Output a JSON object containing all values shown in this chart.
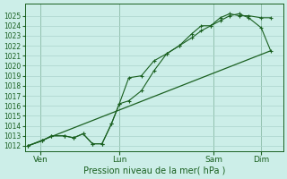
{
  "background_color": "#cceee8",
  "grid_color": "#aad4cc",
  "line_color": "#1a6020",
  "title": "Pression niveau de la mer( hPa )",
  "ylim": [
    1011.5,
    1026.2
  ],
  "yticks": [
    1012,
    1013,
    1014,
    1015,
    1016,
    1017,
    1018,
    1019,
    1020,
    1021,
    1022,
    1023,
    1024,
    1025
  ],
  "xtick_labels": [
    "Ven",
    "Lun",
    "Sam",
    "Dim"
  ],
  "xtick_positions": [
    0.5,
    3.0,
    6.0,
    7.5
  ],
  "xlim": [
    0.0,
    8.2
  ],
  "line1_x": [
    0.1,
    0.55,
    0.85,
    1.25,
    1.55,
    1.85,
    2.15,
    2.45,
    2.75,
    3.0,
    3.3,
    3.7,
    4.1,
    4.5,
    4.9,
    5.3,
    5.6,
    5.9,
    6.2,
    6.5,
    6.8,
    7.1,
    7.5,
    7.8
  ],
  "line1_y": [
    1012.0,
    1012.5,
    1013.0,
    1013.0,
    1012.8,
    1013.2,
    1012.2,
    1012.2,
    1014.2,
    1016.2,
    1018.8,
    1019.0,
    1020.5,
    1021.2,
    1022.0,
    1023.2,
    1024.0,
    1024.0,
    1024.8,
    1025.2,
    1025.0,
    1025.0,
    1024.8,
    1024.8
  ],
  "line2_x": [
    0.1,
    0.55,
    0.85,
    1.25,
    1.55,
    1.85,
    2.15,
    2.45,
    2.75,
    3.0,
    3.3,
    3.7,
    4.1,
    4.5,
    4.9,
    5.3,
    5.6,
    5.9,
    6.2,
    6.5,
    6.8,
    7.1,
    7.5,
    7.8
  ],
  "line2_y": [
    1012.0,
    1012.5,
    1013.0,
    1013.0,
    1012.8,
    1013.2,
    1012.2,
    1012.2,
    1014.2,
    1016.2,
    1016.5,
    1017.5,
    1019.5,
    1021.2,
    1022.0,
    1022.8,
    1023.5,
    1024.0,
    1024.5,
    1025.0,
    1025.2,
    1024.8,
    1023.8,
    1021.5
  ],
  "trend_x": [
    0.1,
    7.8
  ],
  "trend_y": [
    1012.0,
    1021.5
  ]
}
